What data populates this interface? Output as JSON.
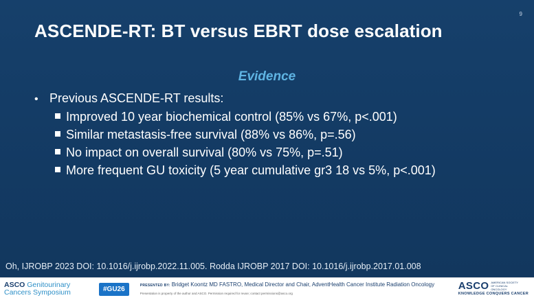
{
  "slide": {
    "page_number": "9",
    "title": "ASCENDE-RT: BT versus EBRT dose escalation",
    "subtitle": "Evidence",
    "main_bullet": "Previous ASCENDE-RT results:",
    "sub_bullets": [
      "Improved 10 year biochemical control (85% vs 67%, p<.001)",
      "Similar metastasis-free survival (88% vs 86%, p=.56)",
      "No impact on overall survival (80% vs 75%, p=.51)",
      "More frequent GU toxicity (5 year cumulative gr3 18 vs 5%, p<.001)"
    ],
    "reference": "Oh, IJROBP 2023 DOI: 10.1016/j.ijrobp.2022.11.005. Rodda IJROBP 2017 DOI: 10.1016/j.ijrobp.2017.01.008"
  },
  "footer": {
    "logo_line1_a": "ASCO",
    "logo_line1_b": "Genitourinary",
    "logo_line2": "Cancers Symposium",
    "hashtag": "#GU26",
    "presented_label": "PRESENTED BY:",
    "presenter": "Bridget Koontz MD FASTRO, Medical Director and Chair, AdventHealth Cancer Institute Radiation Oncology",
    "permission_note": "Presentation is property of the author and ASCO. Permission required for reuse; contact permissions@asco.org",
    "asco_logo": "ASCO",
    "asco_org": "AMERICAN SOCIETY OF CLINICAL ONCOLOGY",
    "asco_tagline": "KNOWLEDGE CONQUERS CANCER"
  },
  "colors": {
    "slide_background": "#133a63",
    "subtitle": "#5fb4e3",
    "hashtag_background": "#1a73c7"
  }
}
